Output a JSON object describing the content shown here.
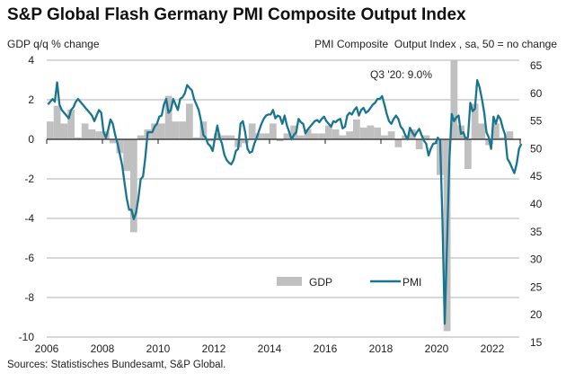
{
  "header": {
    "title": "S&P Global Flash Germany PMI Composite Output Index",
    "left_axis_title": "GDP q/q % change",
    "right_axis_title": "PMI Composite  Output Index , sa, 50 = no change"
  },
  "footer": {
    "sources": "Sources: Statistisches Bundesamt, S&P Global."
  },
  "colors": {
    "gdp": "#c0c0c0",
    "pmi": "#18758f",
    "grid": "#cccccc",
    "axis": "#222222"
  },
  "chart_data": {
    "type": "bar+line",
    "title": "S&P Global Flash Germany PMI Composite Output Index",
    "x_ticks": [
      "2006",
      "2008",
      "2010",
      "2012",
      "2014",
      "2016",
      "2018",
      "2020",
      "2022"
    ],
    "xlim": [
      2006,
      2023.1
    ],
    "y_left": {
      "label": "GDP q/q % change",
      "lim": [
        -10,
        4
      ],
      "ticks": [
        "4",
        "2",
        "0",
        "-2",
        "-4",
        "-6",
        "-8",
        "-10"
      ]
    },
    "y_right": {
      "label": "PMI Composite  Output Index , sa, 50 = no change",
      "lim": [
        15,
        65
      ],
      "ticks": [
        "65",
        "60",
        "55",
        "50",
        "45",
        "40",
        "35",
        "30",
        "25",
        "20",
        "15"
      ]
    },
    "grid": true,
    "legend": {
      "placement": "bottom-center",
      "entries": [
        "GDP",
        "PMI"
      ]
    },
    "annotation": "Q3 '20: 9.0%",
    "series": [
      {
        "name": "GDP",
        "type": "bar",
        "axis": "left",
        "frequency": "quarterly",
        "values_by_year": {
          "2006": [
            0.9,
            1.7,
            0.8,
            1.5
          ],
          "2007": [
            0.1,
            0.8,
            0.5,
            0.4
          ],
          "2008": [
            0.4,
            -0.2,
            -0.7,
            -1.6
          ],
          "2009": [
            -4.7,
            0.2,
            0.5,
            0.8
          ],
          "2010": [
            0.8,
            2.2,
            0.9,
            0.9
          ],
          "2011": [
            1.8,
            0.1,
            0.9,
            -0.1
          ],
          "2012": [
            0.3,
            0.2,
            0.2,
            -0.4
          ],
          "2013": [
            -0.2,
            0.8,
            0.3,
            0.3
          ],
          "2014": [
            0.8,
            -0.1,
            0.3,
            0.7
          ],
          "2015": [
            0.2,
            0.5,
            0.3,
            0.3
          ],
          "2016": [
            0.7,
            0.5,
            0.2,
            0.4
          ],
          "2017": [
            1.0,
            0.6,
            0.7,
            0.6
          ],
          "2018": [
            0.2,
            0.4,
            -0.4,
            0.2
          ],
          "2019": [
            0.5,
            -0.5,
            0.2,
            0.0
          ],
          "2020": [
            -1.8,
            -9.7,
            9.0,
            0.7
          ],
          "2021": [
            -1.5,
            1.8,
            0.8,
            -0.3
          ],
          "2022": [
            0.8,
            0.1,
            0.4,
            0.0
          ]
        }
      },
      {
        "name": "PMI",
        "type": "line",
        "axis": "right",
        "frequency": "monthly",
        "values_by_year": {
          "2006": [
            57,
            57.5,
            58,
            57.5,
            61,
            57,
            56,
            55.5,
            55,
            54.5,
            56,
            56.5
          ],
          "2007": [
            57.5,
            58,
            57.5,
            57,
            56.5,
            56,
            55.5,
            55,
            54,
            55,
            56,
            55.5
          ],
          "2008": [
            52,
            51,
            52.5,
            54.3,
            53.5,
            51.5,
            50,
            48,
            46,
            43,
            40,
            38
          ],
          "2009": [
            38,
            36.3,
            37.5,
            40,
            43.5,
            44,
            47.5,
            52,
            52,
            52,
            53,
            53.5
          ],
          "2010": [
            54.8,
            55,
            57,
            58,
            55.5,
            56,
            58,
            57,
            56,
            58,
            58.3,
            59
          ],
          "2011": [
            60.5,
            60,
            59.6,
            58,
            57,
            56,
            54,
            51.5,
            51,
            49.9,
            49.5,
            48.6
          ],
          "2012": [
            51,
            53.2,
            51,
            50,
            48,
            47,
            46.5,
            46.2,
            47,
            48.6,
            49,
            53.5
          ],
          "2013": [
            54,
            52,
            49,
            48.3,
            48.5,
            50,
            51,
            52.3,
            53.5,
            54.4,
            55,
            55.2
          ],
          "2014": [
            55.2,
            56,
            54.5,
            55,
            54.8,
            53.5,
            55,
            53.2,
            52,
            50.7,
            51.5,
            52
          ],
          "2015": [
            54.4,
            53.8,
            53.5,
            51.8,
            52.5,
            53,
            53.5,
            54,
            54.2,
            53.8,
            54.4,
            54.8
          ],
          "2016": [
            54,
            53.5,
            53,
            54,
            53.8,
            54.2,
            54.4,
            52.7,
            53,
            55,
            55.5,
            55.2
          ],
          "2017": [
            56,
            56.5,
            55,
            56,
            56.4,
            55.5,
            55.8,
            56.4,
            57,
            57.3,
            58,
            58
          ],
          "2018": [
            58.5,
            57,
            55.3,
            54,
            53.5,
            54.4,
            55,
            54.4,
            53,
            52.5,
            51.5,
            50.7
          ],
          "2019": [
            52.8,
            52,
            51.3,
            52,
            52.6,
            51.5,
            50.5,
            49.9,
            47.8,
            49,
            49.9,
            50
          ],
          "2020": [
            51,
            50.5,
            36,
            17.4,
            32,
            47,
            55.3,
            54,
            54.7,
            55,
            51.7,
            52
          ],
          "2021": [
            50.8,
            51.1,
            57.3,
            55.8,
            56.2,
            61.4,
            60.1,
            58,
            55.5,
            52,
            51,
            49
          ],
          "2022": [
            54.8,
            53.5,
            55,
            54.4,
            52.8,
            51.5,
            47.2,
            46.5,
            45.5,
            44.6,
            46.3,
            49
          ],
          "2023": [
            49.9
          ]
        }
      }
    ]
  }
}
